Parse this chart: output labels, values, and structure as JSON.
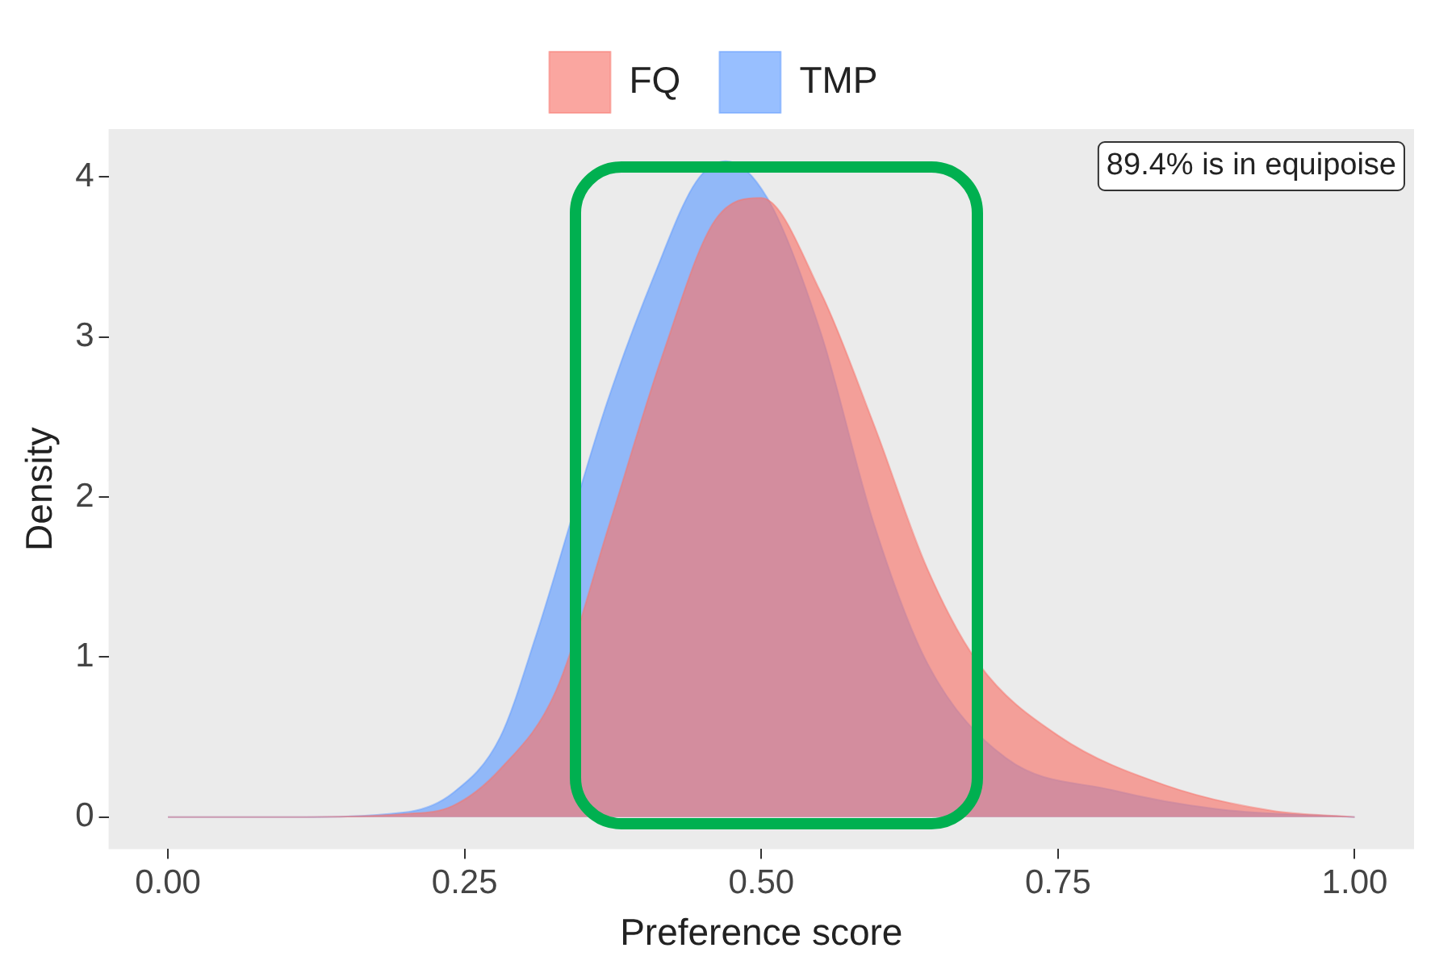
{
  "chart_data": {
    "type": "area",
    "xlabel": "Preference score",
    "ylabel": "Density",
    "legend": "top",
    "grid": false,
    "xlim": [
      -0.05,
      1.05
    ],
    "xticks": [
      {
        "value": 0,
        "label": "0.00"
      },
      {
        "value": 0.25,
        "label": "0.25"
      },
      {
        "value": 0.5,
        "label": "0.50"
      },
      {
        "value": 0.75,
        "label": "0.75"
      },
      {
        "value": 1,
        "label": "1.00"
      }
    ],
    "ylim": [
      -0.2,
      4.3
    ],
    "yticks": [
      0,
      1,
      2,
      3,
      4
    ],
    "annotations": [
      "89.4% is in equipoise"
    ],
    "series": [
      {
        "name": "FQ",
        "color": "#f8766d",
        "x": [
          0,
          0.1,
          0.2,
          0.24,
          0.28,
          0.327,
          0.372,
          0.416,
          0.461,
          0.5,
          0.55,
          0.595,
          0.64,
          0.683,
          0.75,
          0.84,
          0.93,
          1
        ],
        "values": [
          0,
          0,
          0.02,
          0.07,
          0.3,
          0.79,
          1.83,
          2.87,
          3.73,
          3.87,
          3.28,
          2.45,
          1.55,
          0.96,
          0.51,
          0.2,
          0.04,
          0
        ]
      },
      {
        "name": "TMP",
        "color": "#619cff",
        "x": [
          0,
          0.1,
          0.2,
          0.24,
          0.28,
          0.31,
          0.37,
          0.41,
          0.445,
          0.47,
          0.505,
          0.55,
          0.595,
          0.64,
          0.706,
          0.795,
          0.884,
          1
        ],
        "values": [
          0,
          0,
          0.03,
          0.15,
          0.5,
          1.13,
          2.59,
          3.39,
          3.97,
          4.1,
          3.87,
          3.03,
          1.83,
          0.96,
          0.37,
          0.17,
          0.05,
          0
        ]
      }
    ]
  }
}
